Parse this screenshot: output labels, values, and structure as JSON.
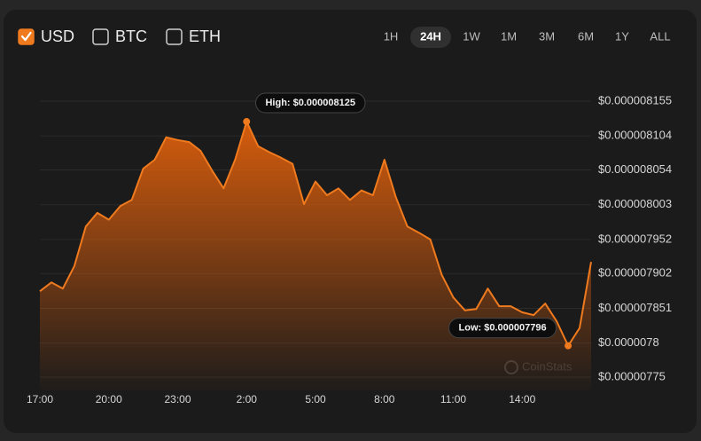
{
  "currencies": [
    {
      "label": "USD",
      "checked": true
    },
    {
      "label": "BTC",
      "checked": false
    },
    {
      "label": "ETH",
      "checked": false
    }
  ],
  "timeframes": {
    "options": [
      "1H",
      "24H",
      "1W",
      "1M",
      "3M",
      "6M",
      "1Y",
      "ALL"
    ],
    "active": "24H"
  },
  "watermark": "CoinStats",
  "chart_data": {
    "type": "area",
    "categories": [
      "17:00",
      null,
      null,
      null,
      null,
      null,
      "20:00",
      null,
      null,
      null,
      null,
      null,
      "23:00",
      null,
      null,
      null,
      null,
      null,
      "2:00",
      null,
      null,
      null,
      null,
      null,
      "5:00",
      null,
      null,
      null,
      null,
      null,
      "8:00",
      null,
      null,
      null,
      null,
      null,
      "11:00",
      null,
      null,
      null,
      null,
      null,
      "14:00",
      null,
      null,
      null,
      null,
      null,
      null
    ],
    "values": [
      7.876e-06,
      7.889e-06,
      7.88e-06,
      7.913e-06,
      7.971e-06,
      7.991e-06,
      7.981e-06,
      8.001e-06,
      8.01e-06,
      8.056e-06,
      8.069e-06,
      8.102e-06,
      8.098e-06,
      8.095e-06,
      8.082e-06,
      8.053e-06,
      8.027e-06,
      8.069e-06,
      8.125e-06,
      8.089e-06,
      8.08e-06,
      8.072e-06,
      8.063e-06,
      8.004e-06,
      8.037e-06,
      8.017e-06,
      8.027e-06,
      8.01e-06,
      8.024e-06,
      8.017e-06,
      8.069e-06,
      8.014e-06,
      7.971e-06,
      7.962e-06,
      7.952e-06,
      7.9e-06,
      7.867e-06,
      7.848e-06,
      7.85e-06,
      7.88e-06,
      7.854e-06,
      7.854e-06,
      7.845e-06,
      7.841e-06,
      7.858e-06,
      7.832e-06,
      7.796e-06,
      7.822e-06,
      7.919e-06
    ],
    "color": "#f07a1e",
    "annotations": {
      "high": "High: $0.000008125",
      "low": "Low: $0.000007796"
    },
    "ylim": [
      7.75e-06,
      8.155e-06
    ],
    "yticks": [
      {
        "value": 8.155e-06,
        "label": "$0.000008155"
      },
      {
        "value": 8.104e-06,
        "label": "$0.000008104"
      },
      {
        "value": 8.054e-06,
        "label": "$0.000008054"
      },
      {
        "value": 8.003e-06,
        "label": "$0.000008003"
      },
      {
        "value": 7.952e-06,
        "label": "$0.000007952"
      },
      {
        "value": 7.902e-06,
        "label": "$0.000007902"
      },
      {
        "value": 7.851e-06,
        "label": "$0.000007851"
      },
      {
        "value": 7.8e-06,
        "label": "$0.0000078"
      },
      {
        "value": 7.75e-06,
        "label": "$0.00000775"
      }
    ],
    "grid": true
  }
}
